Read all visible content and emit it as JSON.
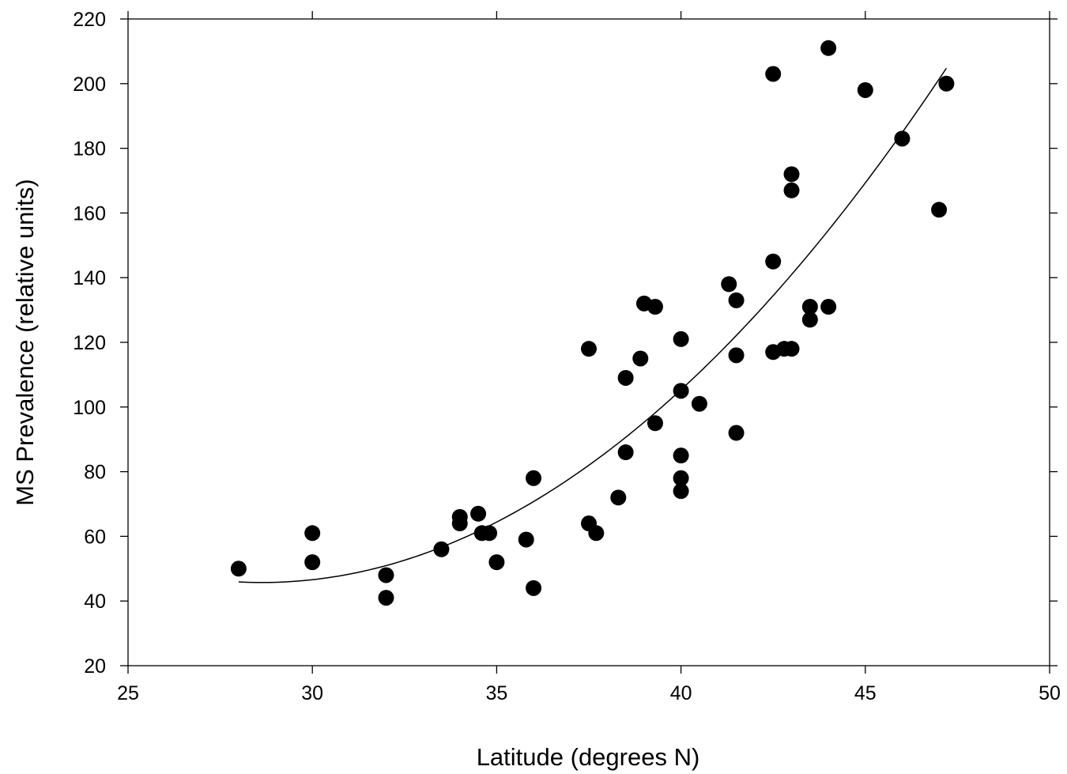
{
  "chart_data": {
    "type": "scatter",
    "title": "",
    "xlabel": "Latitude (degrees N)",
    "ylabel": "MS Prevalence (relative units)",
    "xlim": [
      25,
      50
    ],
    "ylim": [
      20,
      220
    ],
    "xticks": [
      25,
      30,
      35,
      40,
      45,
      50
    ],
    "yticks": [
      20,
      40,
      60,
      80,
      100,
      120,
      140,
      160,
      180,
      200,
      220
    ],
    "grid": false,
    "legend": "none",
    "marker_color": "#000000",
    "series": [
      {
        "points": [
          [
            28,
            50
          ],
          [
            30,
            61
          ],
          [
            30,
            52
          ],
          [
            32,
            48
          ],
          [
            32,
            41
          ],
          [
            33.5,
            56
          ],
          [
            34,
            66
          ],
          [
            34,
            64
          ],
          [
            34.5,
            67
          ],
          [
            34.6,
            61
          ],
          [
            34.8,
            61
          ],
          [
            35,
            52
          ],
          [
            35.8,
            59
          ],
          [
            36,
            78
          ],
          [
            36,
            44
          ],
          [
            37.5,
            118
          ],
          [
            37.5,
            64
          ],
          [
            37.7,
            61
          ],
          [
            38.3,
            72
          ],
          [
            38.5,
            109
          ],
          [
            38.5,
            86
          ],
          [
            38.9,
            115
          ],
          [
            39,
            132
          ],
          [
            39.3,
            131
          ],
          [
            39.3,
            95
          ],
          [
            40,
            121
          ],
          [
            40,
            105
          ],
          [
            40,
            85
          ],
          [
            40,
            78
          ],
          [
            40,
            74
          ],
          [
            40.5,
            101
          ],
          [
            41.3,
            138
          ],
          [
            41.5,
            133
          ],
          [
            41.5,
            116
          ],
          [
            41.5,
            92
          ],
          [
            42.5,
            203
          ],
          [
            42.5,
            145
          ],
          [
            42.5,
            117
          ],
          [
            42.8,
            118
          ],
          [
            43,
            118
          ],
          [
            43,
            172
          ],
          [
            43,
            167
          ],
          [
            43.5,
            131
          ],
          [
            43.5,
            127
          ],
          [
            44,
            211
          ],
          [
            44,
            131
          ],
          [
            45,
            198
          ],
          [
            46,
            183
          ],
          [
            47,
            161
          ],
          [
            47.2,
            200
          ]
        ]
      }
    ],
    "fit_line": {
      "type": "quadratic",
      "x_range": [
        28,
        47.2
      ],
      "points": [
        [
          28,
          46
        ],
        [
          30,
          47.2
        ],
        [
          32,
          51
        ],
        [
          34,
          58
        ],
        [
          36,
          70
        ],
        [
          38,
          86
        ],
        [
          40,
          106
        ],
        [
          42,
          129
        ],
        [
          44,
          155
        ],
        [
          46,
          185
        ],
        [
          47.2,
          204
        ]
      ]
    }
  }
}
